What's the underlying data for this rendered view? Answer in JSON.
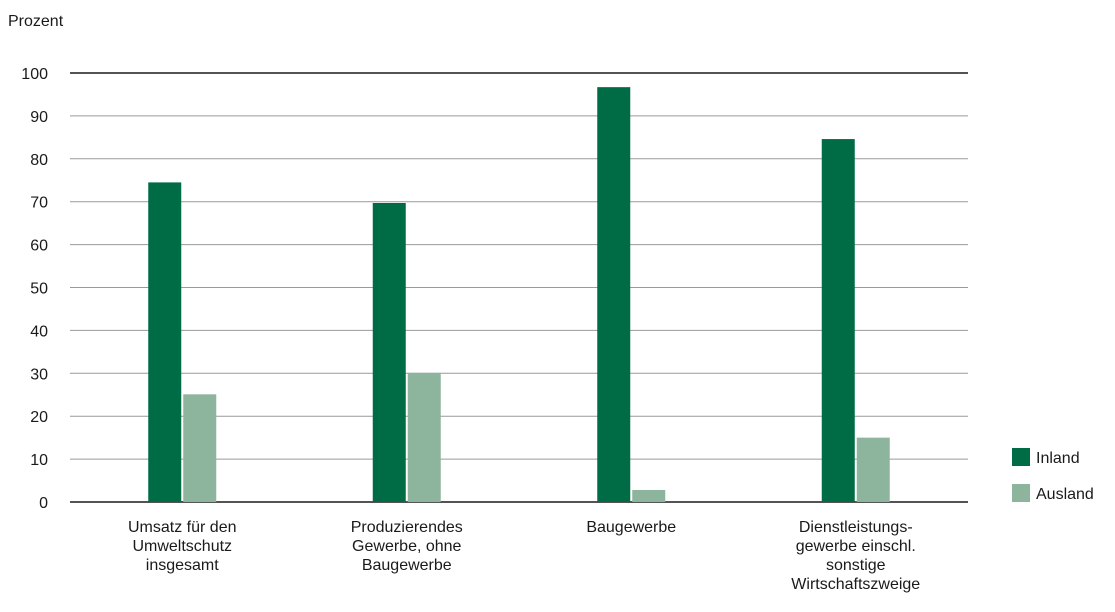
{
  "chart_data": {
    "type": "bar",
    "ylabel": "Prozent",
    "categories": [
      [
        "Umsatz für den",
        "Umweltschutz",
        "insgesamt"
      ],
      [
        "Produzierendes",
        "Gewerbe, ohne",
        "Baugewerbe"
      ],
      [
        "Baugewerbe"
      ],
      [
        "Dienstleistungs-",
        "gewerbe einschl.",
        "sonstige",
        "Wirtschaftszweige"
      ]
    ],
    "series": [
      {
        "name": "Inland",
        "color": "#006c45",
        "values": [
          74.5,
          69.7,
          96.7,
          84.6
        ]
      },
      {
        "name": "Ausland",
        "color": "#8db49d",
        "values": [
          25.1,
          30.1,
          2.8,
          15.0
        ]
      }
    ],
    "ylim": [
      0,
      100
    ],
    "yticks": [
      0,
      10,
      20,
      30,
      40,
      50,
      60,
      70,
      80,
      90,
      100
    ],
    "grid": true,
    "legend_position": "right"
  }
}
